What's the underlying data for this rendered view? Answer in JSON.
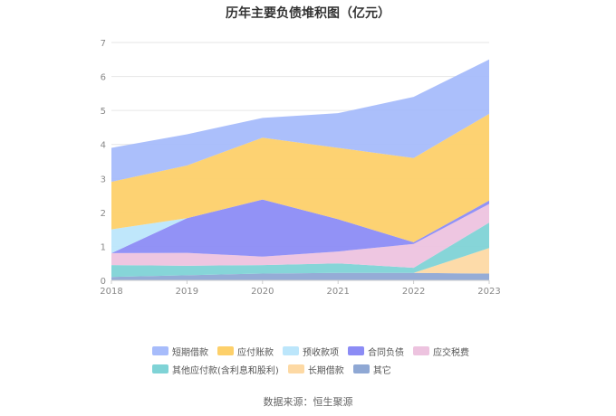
{
  "chart_data": {
    "type": "area",
    "stacked": true,
    "title": "历年主要负债堆积图（亿元）",
    "xlabel": "",
    "ylabel": "",
    "x": [
      "2018",
      "2019",
      "2020",
      "2021",
      "2022",
      "2023"
    ],
    "ylim": [
      0,
      7
    ],
    "yticks": [
      "0",
      "1",
      "2",
      "3",
      "4",
      "5",
      "6",
      "7"
    ],
    "grid": true,
    "legend_position": "bottom",
    "series": [
      {
        "name": "其它",
        "color": "#8fa8d4",
        "values": [
          0.1,
          0.15,
          0.2,
          0.22,
          0.22,
          0.2
        ]
      },
      {
        "name": "长期借款",
        "color": "#fdd9a4",
        "values": [
          0.0,
          0.0,
          0.0,
          0.0,
          0.0,
          0.75
        ]
      },
      {
        "name": "其他应付款(含利息和股利)",
        "color": "#7fd3d6",
        "values": [
          0.35,
          0.28,
          0.25,
          0.28,
          0.15,
          0.75
        ]
      },
      {
        "name": "应交税费",
        "color": "#edc3df",
        "values": [
          0.35,
          0.38,
          0.25,
          0.35,
          0.7,
          0.55
        ]
      },
      {
        "name": "合同负债",
        "color": "#8c8cf5",
        "values": [
          0.0,
          1.02,
          1.68,
          0.95,
          0.05,
          0.1
        ]
      },
      {
        "name": "预收款项",
        "color": "#bce6fb",
        "values": [
          0.7,
          0.0,
          0.0,
          0.0,
          0.0,
          0.0
        ]
      },
      {
        "name": "应付账款",
        "color": "#fdd06a",
        "values": [
          1.4,
          1.55,
          1.82,
          2.1,
          2.48,
          2.55
        ]
      },
      {
        "name": "短期借款",
        "color": "#a7bcfb",
        "values": [
          1.0,
          0.92,
          0.58,
          1.02,
          1.8,
          1.6
        ]
      }
    ]
  },
  "legend": {
    "row1": [
      "短期借款",
      "应付账款",
      "预收款项",
      "合同负债",
      "应交税费"
    ],
    "row2": [
      "其他应付款(含利息和股利)",
      "长期借款",
      "其它"
    ]
  },
  "source": "数据来源：恒生聚源"
}
